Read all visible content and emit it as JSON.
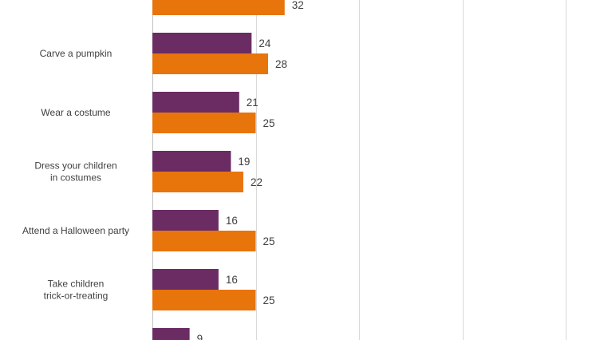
{
  "chart_data": {
    "type": "bar",
    "orientation": "horizontal",
    "categories": [
      "",
      "Carve a pumpkin",
      "Wear a costume",
      "Dress your children in costumes",
      "Attend a Halloween party",
      "Take children trick-or-treating",
      ""
    ],
    "series": [
      {
        "values": [
          null,
          24,
          21,
          19,
          16,
          16,
          9
        ],
        "color": "#6a2c63"
      },
      {
        "values": [
          32,
          28,
          25,
          22,
          25,
          25,
          null
        ],
        "color": "#e8740c"
      }
    ],
    "xlim": [
      0,
      100
    ],
    "grid": "vertical",
    "data_labels": true
  }
}
